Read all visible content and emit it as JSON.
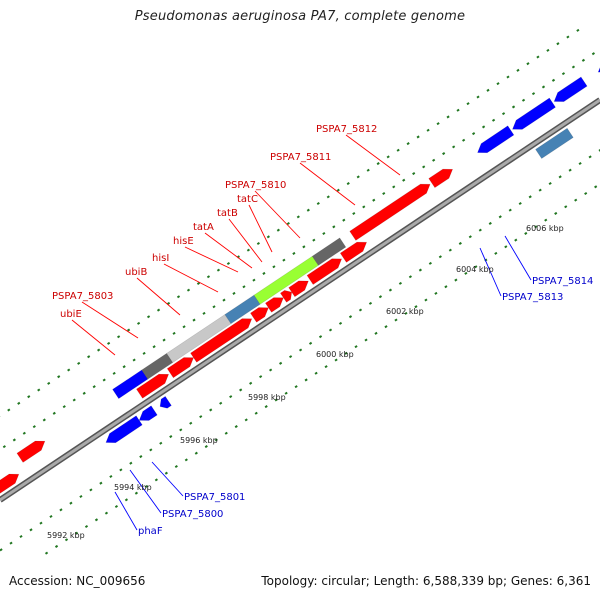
{
  "title": "Pseudomonas aeruginosa PA7, complete genome",
  "footer": {
    "accession": "Accession: NC_009656",
    "summary": "Topology: circular; Length: 6,588,339 bp; Genes: 6,361"
  },
  "colors": {
    "red_feature": "#ff0000",
    "blue_feature": "#0000ff",
    "label_red": "#cc0000",
    "label_blue": "#0000cc",
    "backbone": "#888888",
    "tick": "#227722",
    "light_green": "#99ff33",
    "olive": "#6b8e23",
    "steel_blue": "#4682b4",
    "light_gray": "#c8c8c8",
    "dark_gray": "#666666",
    "purple": "#7b68ee"
  },
  "ticks": [
    {
      "label": "5992 kbp",
      "pos": 5992
    },
    {
      "label": "5994 kbp",
      "pos": 5994
    },
    {
      "label": "5996 kbp",
      "pos": 5996
    },
    {
      "label": "5998 kbp",
      "pos": 5998
    },
    {
      "label": "6000 kbp",
      "pos": 6000
    },
    {
      "label": "6002 kbp",
      "pos": 6002
    },
    {
      "label": "6004 kbp",
      "pos": 6004
    },
    {
      "label": "6006 kbp",
      "pos": 6006
    }
  ],
  "labels_top": [
    {
      "text": "ubiE",
      "color": "label_red"
    },
    {
      "text": "PSPA7_5803",
      "color": "label_red"
    },
    {
      "text": "ubiB",
      "color": "label_red"
    },
    {
      "text": "hisI",
      "color": "label_red"
    },
    {
      "text": "hisE",
      "color": "label_red"
    },
    {
      "text": "tatA",
      "color": "label_red"
    },
    {
      "text": "tatB",
      "color": "label_red"
    },
    {
      "text": "tatC",
      "color": "label_red"
    },
    {
      "text": "PSPA7_5810",
      "color": "label_red"
    },
    {
      "text": "PSPA7_5811",
      "color": "label_red"
    },
    {
      "text": "PSPA7_5812",
      "color": "label_red"
    }
  ],
  "labels_bottom": [
    {
      "text": "PSPA7_5801",
      "color": "label_blue"
    },
    {
      "text": "PSPA7_5800",
      "color": "label_blue"
    },
    {
      "text": "phaF",
      "color": "label_blue"
    },
    {
      "text": "PSPA7_5813",
      "color": "label_blue"
    },
    {
      "text": "PSPA7_5814",
      "color": "label_blue"
    }
  ]
}
